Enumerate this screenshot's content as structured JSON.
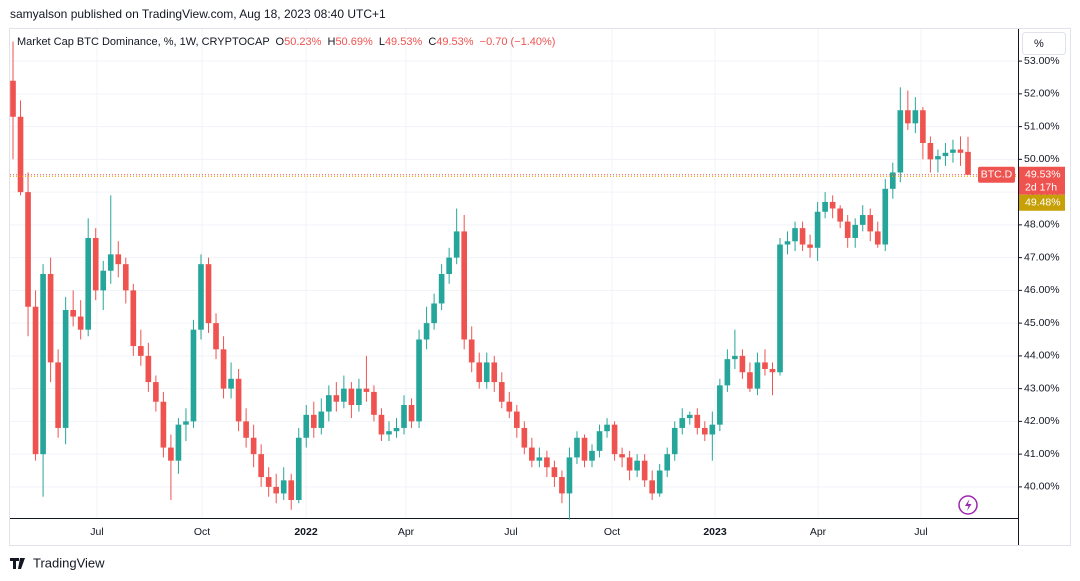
{
  "header": "samyalson published on TradingView.com, Aug 18, 2023 08:40 UTC+1",
  "footer": "TradingView",
  "chart_data": {
    "type": "candlestick",
    "legend": {
      "name": "Market Cap BTC Dominance, %, 1W, CRYPTOCAP",
      "o_label": "O",
      "o": "50.23%",
      "h_label": "H",
      "h": "50.69%",
      "l_label": "L",
      "l": "49.53%",
      "c_label": "C",
      "c": "49.53%",
      "change": "−0.70 (−1.40%)"
    },
    "scale_button": "%",
    "up_color": "#26a69a",
    "down_color": "#ef5350",
    "ylim": [
      39.05,
      53.98
    ],
    "yticks": [
      {
        "value": 40,
        "label": "40.00%"
      },
      {
        "value": 41,
        "label": "41.00%"
      },
      {
        "value": 42,
        "label": "42.00%"
      },
      {
        "value": 43,
        "label": "43.00%"
      },
      {
        "value": 44,
        "label": "44.00%"
      },
      {
        "value": 45,
        "label": "45.00%"
      },
      {
        "value": 46,
        "label": "46.00%"
      },
      {
        "value": 47,
        "label": "47.00%"
      },
      {
        "value": 48,
        "label": "48.00%"
      },
      {
        "value": 49,
        "label": "49.00%"
      },
      {
        "value": 50,
        "label": "50.00%"
      },
      {
        "value": 51,
        "label": "51.00%"
      },
      {
        "value": 52,
        "label": "52.00%"
      },
      {
        "value": 53,
        "label": "53.00%"
      }
    ],
    "xtick_labels": [
      "Jul",
      "Oct",
      "2022",
      "Apr",
      "Jul",
      "Oct",
      "2023",
      "Apr",
      "Jul"
    ],
    "grid": true,
    "symbol": "BTC.D",
    "last_price": {
      "value": 49.53,
      "label": "49.53%"
    },
    "countdown": "2d 17h",
    "prev_close": {
      "value": 49.48,
      "label": "49.48%"
    },
    "candles": [
      [
        52.4,
        53.6,
        50.0,
        51.3
      ],
      [
        51.3,
        51.8,
        48.9,
        49.0
      ],
      [
        49.0,
        49.6,
        44.6,
        45.5
      ],
      [
        45.5,
        46.0,
        40.8,
        41.0
      ],
      [
        41.0,
        46.8,
        39.7,
        46.5
      ],
      [
        46.5,
        47.0,
        43.2,
        43.8
      ],
      [
        43.8,
        44.2,
        41.5,
        41.8
      ],
      [
        41.8,
        45.8,
        41.3,
        45.4
      ],
      [
        45.4,
        46.0,
        44.9,
        45.2
      ],
      [
        45.2,
        45.7,
        44.5,
        44.8
      ],
      [
        44.8,
        48.2,
        44.6,
        47.6
      ],
      [
        47.6,
        47.9,
        45.7,
        46.0
      ],
      [
        46.0,
        46.9,
        45.4,
        46.6
      ],
      [
        46.6,
        48.9,
        46.2,
        47.1
      ],
      [
        47.1,
        47.5,
        46.4,
        46.8
      ],
      [
        46.8,
        47.0,
        45.6,
        46.0
      ],
      [
        46.0,
        46.2,
        44.0,
        44.3
      ],
      [
        44.3,
        44.8,
        43.7,
        44.0
      ],
      [
        44.0,
        44.4,
        42.9,
        43.2
      ],
      [
        43.2,
        43.4,
        42.3,
        42.6
      ],
      [
        42.6,
        42.9,
        40.9,
        41.2
      ],
      [
        41.2,
        41.6,
        39.6,
        40.8
      ],
      [
        40.8,
        42.1,
        40.4,
        41.9
      ],
      [
        41.9,
        42.4,
        41.4,
        42.0
      ],
      [
        42.0,
        45.1,
        41.8,
        44.8
      ],
      [
        44.8,
        47.1,
        44.5,
        46.8
      ],
      [
        46.8,
        47.0,
        44.7,
        45.0
      ],
      [
        45.0,
        45.3,
        43.9,
        44.2
      ],
      [
        44.2,
        44.6,
        42.7,
        43.0
      ],
      [
        43.0,
        43.8,
        42.7,
        43.3
      ],
      [
        43.3,
        43.6,
        41.7,
        42.0
      ],
      [
        42.0,
        42.4,
        41.2,
        41.5
      ],
      [
        41.5,
        41.9,
        40.6,
        41.0
      ],
      [
        41.0,
        41.3,
        40.0,
        40.3
      ],
      [
        40.3,
        40.6,
        39.7,
        40.0
      ],
      [
        40.0,
        40.4,
        39.5,
        39.8
      ],
      [
        39.8,
        40.6,
        39.6,
        40.2
      ],
      [
        40.2,
        40.4,
        39.3,
        39.6
      ],
      [
        39.6,
        41.8,
        39.5,
        41.5
      ],
      [
        41.5,
        42.5,
        41.2,
        42.2
      ],
      [
        42.2,
        42.6,
        41.5,
        41.8
      ],
      [
        41.8,
        42.7,
        41.6,
        42.3
      ],
      [
        42.3,
        43.1,
        42.0,
        42.8
      ],
      [
        42.8,
        43.2,
        42.3,
        42.6
      ],
      [
        42.6,
        43.4,
        42.4,
        43.0
      ],
      [
        43.0,
        43.2,
        42.1,
        42.5
      ],
      [
        42.5,
        43.3,
        42.3,
        43.0
      ],
      [
        43.0,
        44.0,
        42.6,
        42.9
      ],
      [
        42.9,
        43.1,
        42.0,
        42.2
      ],
      [
        42.2,
        42.4,
        41.4,
        41.6
      ],
      [
        41.6,
        42.0,
        41.4,
        41.7
      ],
      [
        41.7,
        42.1,
        41.5,
        41.8
      ],
      [
        41.8,
        42.8,
        41.6,
        42.5
      ],
      [
        42.5,
        42.7,
        41.8,
        42.0
      ],
      [
        42.0,
        44.8,
        41.8,
        44.5
      ],
      [
        44.5,
        45.5,
        44.2,
        45.0
      ],
      [
        45.0,
        45.9,
        44.8,
        45.6
      ],
      [
        45.6,
        46.8,
        45.4,
        46.5
      ],
      [
        46.5,
        47.3,
        46.2,
        47.0
      ],
      [
        47.0,
        48.5,
        46.8,
        47.8
      ],
      [
        47.8,
        48.3,
        44.2,
        44.5
      ],
      [
        44.5,
        44.9,
        43.5,
        43.8
      ],
      [
        43.8,
        44.1,
        43.0,
        43.2
      ],
      [
        43.2,
        44.1,
        43.0,
        43.8
      ],
      [
        43.8,
        44.0,
        42.9,
        43.2
      ],
      [
        43.2,
        43.5,
        42.4,
        42.6
      ],
      [
        42.6,
        42.9,
        42.1,
        42.3
      ],
      [
        42.3,
        42.5,
        41.5,
        41.8
      ],
      [
        41.8,
        42.0,
        41.0,
        41.2
      ],
      [
        41.2,
        41.5,
        40.6,
        40.8
      ],
      [
        40.8,
        41.2,
        40.6,
        40.9
      ],
      [
        40.9,
        41.1,
        40.3,
        40.6
      ],
      [
        40.6,
        40.8,
        40.0,
        40.3
      ],
      [
        40.3,
        40.5,
        39.5,
        39.8
      ],
      [
        39.8,
        41.2,
        39.0,
        40.9
      ],
      [
        40.9,
        41.7,
        40.7,
        41.5
      ],
      [
        41.5,
        41.6,
        40.6,
        40.8
      ],
      [
        40.8,
        41.3,
        40.6,
        41.1
      ],
      [
        41.1,
        41.9,
        40.9,
        41.7
      ],
      [
        41.7,
        42.1,
        41.5,
        41.9
      ],
      [
        41.9,
        42.0,
        40.8,
        41.0
      ],
      [
        41.0,
        41.2,
        40.6,
        40.9
      ],
      [
        40.9,
        41.1,
        40.2,
        40.5
      ],
      [
        40.5,
        41.0,
        40.3,
        40.8
      ],
      [
        40.8,
        41.0,
        40.0,
        40.2
      ],
      [
        40.2,
        40.5,
        39.6,
        39.8
      ],
      [
        39.8,
        40.7,
        39.7,
        40.5
      ],
      [
        40.5,
        41.2,
        40.3,
        41.0
      ],
      [
        41.0,
        42.0,
        40.8,
        41.8
      ],
      [
        41.8,
        42.4,
        41.6,
        42.1
      ],
      [
        42.1,
        42.3,
        41.9,
        42.2
      ],
      [
        42.2,
        42.4,
        41.6,
        41.8
      ],
      [
        41.8,
        42.0,
        41.4,
        41.6
      ],
      [
        41.6,
        42.3,
        40.8,
        41.9
      ],
      [
        41.9,
        43.3,
        41.7,
        43.1
      ],
      [
        43.1,
        44.2,
        42.9,
        43.9
      ],
      [
        43.9,
        44.8,
        43.6,
        44.0
      ],
      [
        44.0,
        44.2,
        43.3,
        43.5
      ],
      [
        43.5,
        43.8,
        42.9,
        43.0
      ],
      [
        43.0,
        44.1,
        42.8,
        43.8
      ],
      [
        43.8,
        44.2,
        43.4,
        43.6
      ],
      [
        43.6,
        43.8,
        42.8,
        43.5
      ],
      [
        43.5,
        47.6,
        43.4,
        47.4
      ],
      [
        47.4,
        47.8,
        47.1,
        47.5
      ],
      [
        47.5,
        48.1,
        47.2,
        47.9
      ],
      [
        47.9,
        48.1,
        47.2,
        47.4
      ],
      [
        47.4,
        47.7,
        47.0,
        47.3
      ],
      [
        47.3,
        48.7,
        46.9,
        48.4
      ],
      [
        48.4,
        49.0,
        48.2,
        48.7
      ],
      [
        48.7,
        48.9,
        48.2,
        48.5
      ],
      [
        48.5,
        48.6,
        47.9,
        48.1
      ],
      [
        48.1,
        48.3,
        47.3,
        47.6
      ],
      [
        47.6,
        48.2,
        47.3,
        48.0
      ],
      [
        48.0,
        48.6,
        47.8,
        48.3
      ],
      [
        48.3,
        48.5,
        47.5,
        47.8
      ],
      [
        47.8,
        48.1,
        47.3,
        47.4
      ],
      [
        47.4,
        49.4,
        47.2,
        49.1
      ],
      [
        49.1,
        49.9,
        48.8,
        49.6
      ],
      [
        49.6,
        52.2,
        49.3,
        51.5
      ],
      [
        51.5,
        52.1,
        50.9,
        51.1
      ],
      [
        51.1,
        51.9,
        50.8,
        51.5
      ],
      [
        51.5,
        51.6,
        50.0,
        50.5
      ],
      [
        50.5,
        50.7,
        49.6,
        50.0
      ],
      [
        50.0,
        50.3,
        49.6,
        50.1
      ],
      [
        50.1,
        50.5,
        49.8,
        50.2
      ],
      [
        50.2,
        50.6,
        49.9,
        50.3
      ],
      [
        50.3,
        50.7,
        49.8,
        50.2
      ],
      [
        50.23,
        50.69,
        49.53,
        49.53
      ]
    ]
  }
}
